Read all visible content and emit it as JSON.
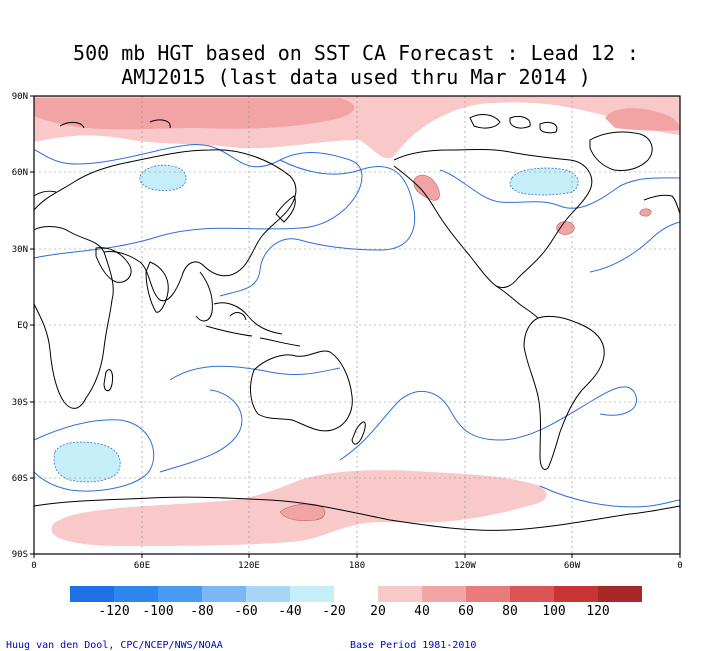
{
  "title_line1": "500 mb HGT based on SST CA Forecast : Lead 12 :",
  "title_line2": "AMJ2015 (last data used thru Mar 2014 )",
  "lat_labels": [
    "90N",
    "60N",
    "30N",
    "EQ",
    "30S",
    "60S",
    "90S"
  ],
  "lon_labels": [
    "0",
    "60E",
    "120E",
    "180",
    "120W",
    "60W",
    "0"
  ],
  "legend": {
    "negative_labels": [
      "-120",
      "-100",
      "-80",
      "-60",
      "-40",
      "-20"
    ],
    "positive_labels": [
      "20",
      "40",
      "60",
      "80",
      "100",
      "120"
    ],
    "negative_colors": [
      "#1f6fe6",
      "#2f86ee",
      "#4a9cf2",
      "#79b8f5",
      "#a8d6f7",
      "#c5eef9"
    ],
    "positive_colors": [
      "#f9c9c9",
      "#f2a3a3",
      "#e87c7c",
      "#dc5454",
      "#c73434",
      "#a82828"
    ]
  },
  "credit_left": "Huug van den Dool, CPC/NCEP/NWS/NOAA",
  "credit_right": "Base Period 1981-2010"
}
